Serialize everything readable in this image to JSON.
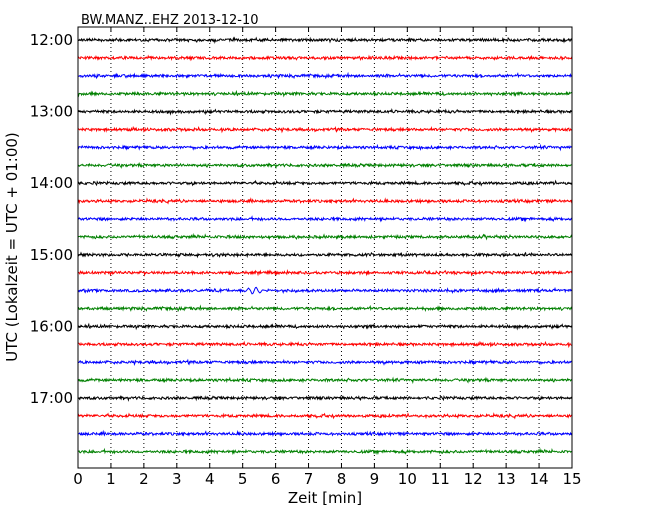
{
  "chart_data": {
    "type": "line",
    "title": "BW.MANZ..EHZ 2013-12-10",
    "xlabel": "Zeit  [min]",
    "ylabel": "UTC (Lokalzeit = UTC + 01:00)",
    "xlim": [
      0,
      15
    ],
    "x_ticks": [
      "0",
      "1",
      "2",
      "3",
      "4",
      "5",
      "6",
      "7",
      "8",
      "9",
      "10",
      "11",
      "12",
      "13",
      "14",
      "15"
    ],
    "y_ticks": [
      "12:00",
      "13:00",
      "14:00",
      "15:00",
      "16:00",
      "17:00"
    ],
    "grid": "dotted vertical",
    "series": [
      {
        "start": "12:00",
        "color": "#000000"
      },
      {
        "start": "12:15",
        "color": "#ff0000"
      },
      {
        "start": "12:30",
        "color": "#0000ff"
      },
      {
        "start": "12:45",
        "color": "#008000"
      },
      {
        "start": "13:00",
        "color": "#000000"
      },
      {
        "start": "13:15",
        "color": "#ff0000"
      },
      {
        "start": "13:30",
        "color": "#0000ff"
      },
      {
        "start": "13:45",
        "color": "#008000"
      },
      {
        "start": "14:00",
        "color": "#000000"
      },
      {
        "start": "14:15",
        "color": "#ff0000"
      },
      {
        "start": "14:30",
        "color": "#0000ff"
      },
      {
        "start": "14:45",
        "color": "#008000"
      },
      {
        "start": "15:00",
        "color": "#000000"
      },
      {
        "start": "15:15",
        "color": "#ff0000"
      },
      {
        "start": "15:30",
        "color": "#0000ff",
        "event_min": [
          5.0,
          5.7
        ]
      },
      {
        "start": "15:45",
        "color": "#008000"
      },
      {
        "start": "16:00",
        "color": "#000000"
      },
      {
        "start": "16:15",
        "color": "#ff0000"
      },
      {
        "start": "16:30",
        "color": "#0000ff"
      },
      {
        "start": "16:45",
        "color": "#008000"
      },
      {
        "start": "17:00",
        "color": "#000000"
      },
      {
        "start": "17:15",
        "color": "#ff0000"
      },
      {
        "start": "17:30",
        "color": "#0000ff"
      },
      {
        "start": "17:45",
        "color": "#008000"
      }
    ]
  }
}
